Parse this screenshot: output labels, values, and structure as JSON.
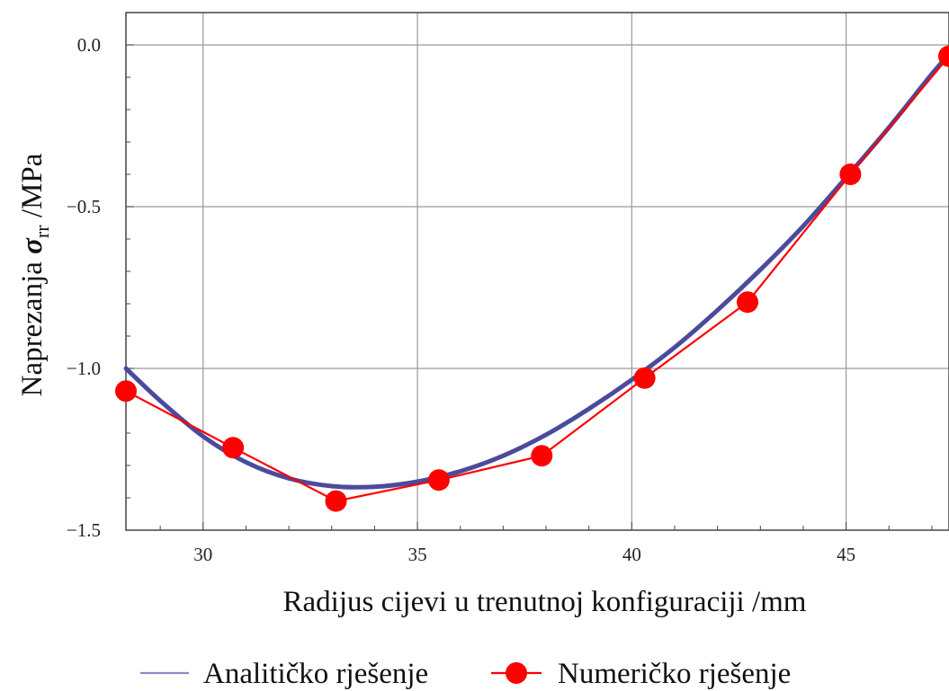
{
  "chart_data": {
    "type": "line",
    "xlabel": "Radijus cijevi u trenutnoj konfiguraciji /mm",
    "ylabel": {
      "prefix": "Naprezanja ",
      "symbol": "σ",
      "subscript": "rr",
      "suffix": " /MPa"
    },
    "xlim": [
      28.2,
      47.4
    ],
    "ylim": [
      -1.5,
      0.1
    ],
    "xticks": [
      30,
      35,
      40,
      45
    ],
    "xtick_labels": [
      "30",
      "35",
      "40",
      "45"
    ],
    "yticks": [
      0.0,
      -0.5,
      -1.0,
      -1.5
    ],
    "ytick_labels": [
      "0.0",
      "−0.5",
      "−1.0",
      "−1.5"
    ],
    "grid": true,
    "legend_position": "bottom",
    "series": [
      {
        "name": "Analitičko rješenje",
        "style": "smooth-line",
        "color": "#4b4b9c",
        "x": [
          28.2,
          29.0,
          30.0,
          31.0,
          32.0,
          33.0,
          34.0,
          35.0,
          36.0,
          37.0,
          38.0,
          39.0,
          40.0,
          41.0,
          42.0,
          43.0,
          44.0,
          45.0,
          46.0,
          47.0,
          47.4
        ],
        "y": [
          -1.0,
          -1.1,
          -1.21,
          -1.29,
          -1.34,
          -1.364,
          -1.366,
          -1.35,
          -1.318,
          -1.27,
          -1.205,
          -1.125,
          -1.035,
          -0.935,
          -0.82,
          -0.695,
          -0.56,
          -0.41,
          -0.255,
          -0.09,
          -0.03
        ]
      },
      {
        "name": "Numeričko rješenje",
        "style": "line-markers",
        "color": "#ff0000",
        "x": [
          28.2,
          30.7,
          33.1,
          35.5,
          37.9,
          40.3,
          42.7,
          45.1,
          47.4
        ],
        "y": [
          -1.07,
          -1.245,
          -1.41,
          -1.345,
          -1.27,
          -1.03,
          -0.795,
          -0.4,
          -0.035
        ]
      }
    ]
  }
}
